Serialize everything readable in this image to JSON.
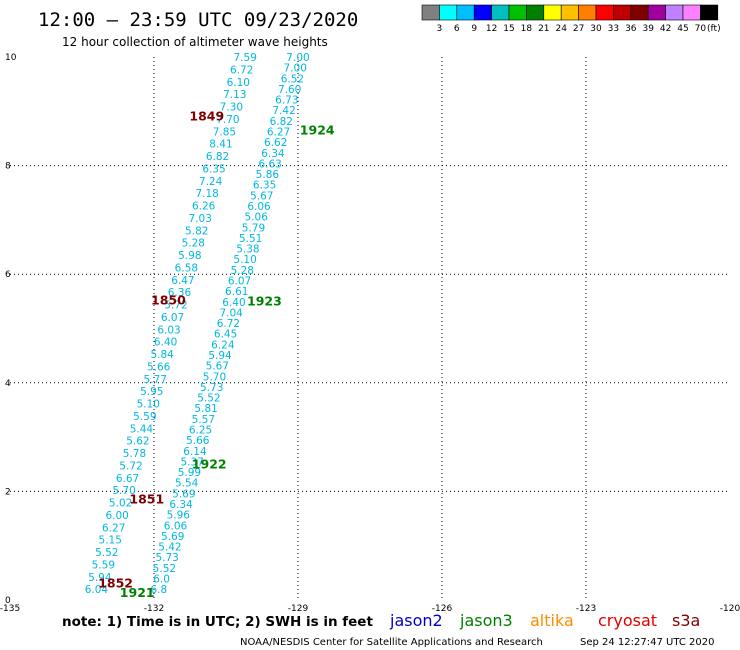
{
  "header": {
    "title": "12:00 – 23:59 UTC 09/23/2020",
    "subtitle": "12 hour collection of altimeter wave heights"
  },
  "colorbar": {
    "colors": [
      "#808080",
      "#00ffff",
      "#00bfff",
      "#0000ff",
      "#00bfbf",
      "#00c000",
      "#008000",
      "#ffff00",
      "#ffc000",
      "#ff8000",
      "#ff0000",
      "#c00000",
      "#800000",
      "#a000a0",
      "#c080ff",
      "#ff80ff",
      "#000000"
    ],
    "labels": [
      "3",
      "6",
      "9",
      "12",
      "15",
      "18",
      "21",
      "24",
      "27",
      "30",
      "33",
      "36",
      "39",
      "42",
      "45",
      "70"
    ],
    "unit": "(ft)"
  },
  "note": "note:  1) Time is in UTC;  2) SWH is in feet",
  "satellites": [
    {
      "name": "jason2",
      "color": "#0000cc"
    },
    {
      "name": "jason3",
      "color": "#008000"
    },
    {
      "name": "altika",
      "color": "#ff8c00"
    },
    {
      "name": "cryosat",
      "color": "#e00000"
    },
    {
      "name": "s3a",
      "color": "#800000"
    }
  ],
  "footer": {
    "agency": "NOAA/NESDIS Center for Satellite Applications and Research",
    "timestamp": "Sep 24 12:27:47 UTC 2020"
  },
  "chart_data": {
    "type": "scatter",
    "xlim": [
      -135,
      -120
    ],
    "ylim": [
      0,
      10
    ],
    "xticks": [
      "-135",
      "-132",
      "-129",
      "-126",
      "-123",
      "-120"
    ],
    "yticks": [
      "0",
      "2",
      "4",
      "6",
      "8",
      "10"
    ],
    "grid": true,
    "passes": [
      {
        "name": "right-track",
        "x_start": -131.9,
        "x_end": -129.0,
        "y_start": 0.2,
        "y_end": 10.0,
        "values": [
          "7.00",
          "7.00",
          "6.52",
          "7.60",
          "6.73",
          "7.42",
          "6.82",
          "6.27",
          "6.62",
          "6.34",
          "6.63",
          "5.86",
          "6.35",
          "5.67",
          "6.06",
          "5.06",
          "5.79",
          "5.51",
          "5.38",
          "5.10",
          "5.28",
          "6.07",
          "6.61",
          "6.40",
          "7.04",
          "6.72",
          "6.45",
          "6.24",
          "5.94",
          "5.67",
          "5.70",
          "5.73",
          "5.52",
          "5.81",
          "5.57",
          "6.25",
          "5.66",
          "6.14",
          "5.37",
          "5.99",
          "5.54",
          "5.69",
          "6.34",
          "5.96",
          "6.06",
          "5.69",
          "5.42",
          "5.73",
          "5.52",
          "6.0",
          "6.8"
        ]
      },
      {
        "name": "left-track",
        "x_start": -133.2,
        "x_end": -130.1,
        "y_start": 0.2,
        "y_end": 10.0,
        "values": [
          "7.59",
          "6.72",
          "6.10",
          "7.13",
          "7.30",
          "7.70",
          "7.85",
          "8.41",
          "6.82",
          "6.35",
          "7.24",
          "7.18",
          "6.26",
          "7.03",
          "5.82",
          "5.28",
          "5.98",
          "6.58",
          "6.47",
          "6.36",
          "5.72",
          "6.07",
          "6.03",
          "6.40",
          "5.84",
          "5.66",
          "5.77",
          "5.95",
          "5.10",
          "5.59",
          "5.44",
          "5.62",
          "5.78",
          "5.72",
          "6.67",
          "5.70",
          "5.02",
          "6.00",
          "6.27",
          "5.15",
          "5.52",
          "5.59",
          "5.94",
          "6.04"
        ]
      }
    ],
    "pass_times": [
      {
        "label": "1849",
        "x": -130.9,
        "y": 8.9,
        "color": "#800000"
      },
      {
        "label": "1924",
        "x": -128.6,
        "y": 8.65,
        "color": "#008000"
      },
      {
        "label": "1850",
        "x": -131.7,
        "y": 5.52,
        "color": "#800000"
      },
      {
        "label": "1923",
        "x": -129.7,
        "y": 5.5,
        "color": "#008000"
      },
      {
        "label": "1922",
        "x": -130.85,
        "y": 2.5,
        "color": "#008000"
      },
      {
        "label": "1851",
        "x": -132.15,
        "y": 1.85,
        "color": "#800000"
      },
      {
        "label": "1852",
        "x": -132.8,
        "y": 0.3,
        "color": "#800000"
      },
      {
        "label": "1921",
        "x": -132.35,
        "y": 0.13,
        "color": "#008000"
      }
    ]
  }
}
